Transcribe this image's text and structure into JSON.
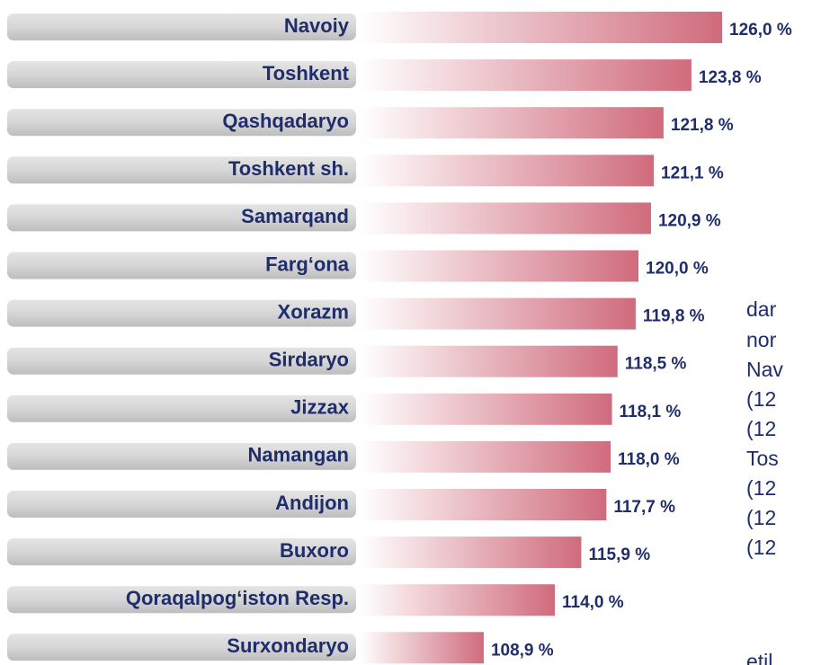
{
  "chart_data": {
    "type": "bar",
    "orientation": "horizontal",
    "categories": [
      "Navoiy",
      "Toshkent",
      "Qashqadaryo",
      "Toshkent sh.",
      "Samarqand",
      "Farg‘ona",
      "Xorazm",
      "Sirdaryo",
      "Jizzax",
      "Namangan",
      "Andijon",
      "Buxoro",
      "Qoraqalpog‘iston Resp.",
      "Surxondaryo"
    ],
    "values": [
      126.0,
      123.8,
      121.8,
      121.1,
      120.9,
      120.0,
      119.8,
      118.5,
      118.1,
      118.0,
      117.7,
      115.9,
      114.0,
      108.9
    ],
    "value_labels": [
      "126,0 %",
      "123,8 %",
      "121,8 %",
      "121,1 %",
      "120,9 %",
      "120,0 %",
      "119,8 %",
      "118,5 %",
      "118,1 %",
      "118,0 %",
      "117,7 %",
      "115,9 %",
      "114,0 %",
      "108,9 %"
    ],
    "color": "#d06b7c",
    "xlim": [
      100,
      130
    ],
    "annotations": [
      "dar",
      "nor",
      "Nav",
      "(12",
      "(12",
      "Tos",
      "(12",
      "(12",
      "(12",
      "etil"
    ]
  }
}
